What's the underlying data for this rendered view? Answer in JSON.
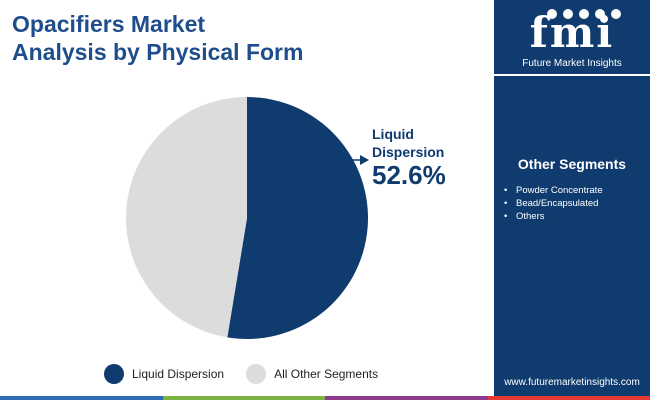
{
  "title": {
    "line1": "Opacifiers Market",
    "line2": "Analysis by Physical Form"
  },
  "chart_data": {
    "type": "pie",
    "slices": [
      {
        "label": "Liquid Dispersion",
        "value": 52.6,
        "color": "#0f3b6e"
      },
      {
        "label": "All Other Segments",
        "value": 47.4,
        "color": "#dcdcdc"
      }
    ],
    "callout": {
      "label_line1": "Liquid",
      "label_line2": "Dispersion",
      "value": "52.6%"
    },
    "legend": {
      "position": "bottom",
      "items": [
        {
          "label": "Liquid Dispersion",
          "color": "#0f3b6e"
        },
        {
          "label": "All Other Segments",
          "color": "#dcdcdc"
        }
      ]
    }
  },
  "sidebar": {
    "logo_text": "fmi",
    "logo_caption": "Future Market Insights",
    "other_segments_heading": "Other Segments",
    "other_segments": [
      "Powder Concentrate",
      "Bead/Encapsulated",
      "Others"
    ],
    "website": "www.futuremarketinsights.com",
    "background_color": "#0f3b6e"
  },
  "bottom_bar_colors": [
    "#2e6db4",
    "#7cb342",
    "#8e3b8e",
    "#e53935"
  ]
}
